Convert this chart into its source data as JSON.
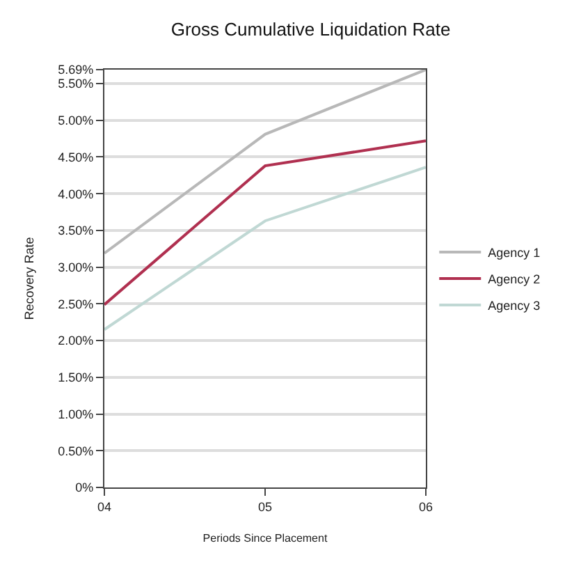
{
  "chart_data": {
    "type": "line",
    "title": "Gross Cumulative Liquidation Rate",
    "xlabel": "Periods Since Placement",
    "ylabel": "Recovery Rate",
    "categories": [
      "04",
      "05",
      "06"
    ],
    "series": [
      {
        "name": "Agency 1",
        "color": "#b8b8b8",
        "values": [
          3.19,
          4.81,
          5.69
        ]
      },
      {
        "name": "Agency 2",
        "color": "#b03050",
        "values": [
          2.49,
          4.38,
          4.72
        ]
      },
      {
        "name": "Agency 3",
        "color": "#c0d8d4",
        "values": [
          2.15,
          3.63,
          4.36
        ]
      }
    ],
    "ylim": [
      0,
      5.69
    ],
    "yticks": [
      {
        "value": 0,
        "label": "0%"
      },
      {
        "value": 0.5,
        "label": "0.50%"
      },
      {
        "value": 1,
        "label": "1.00%"
      },
      {
        "value": 1.5,
        "label": "1.50%"
      },
      {
        "value": 2,
        "label": "2.00%"
      },
      {
        "value": 2.5,
        "label": "2.50%"
      },
      {
        "value": 3,
        "label": "3.00%"
      },
      {
        "value": 3.5,
        "label": "3.50%"
      },
      {
        "value": 4,
        "label": "4.00%"
      },
      {
        "value": 4.5,
        "label": "4.50%"
      },
      {
        "value": 5,
        "label": "5.00%"
      },
      {
        "value": 5.5,
        "label": "5.50%"
      },
      {
        "value": 5.69,
        "label": "5.69%"
      }
    ],
    "grid": "y",
    "legend": "right",
    "marker": "none",
    "line_style": "solid"
  }
}
